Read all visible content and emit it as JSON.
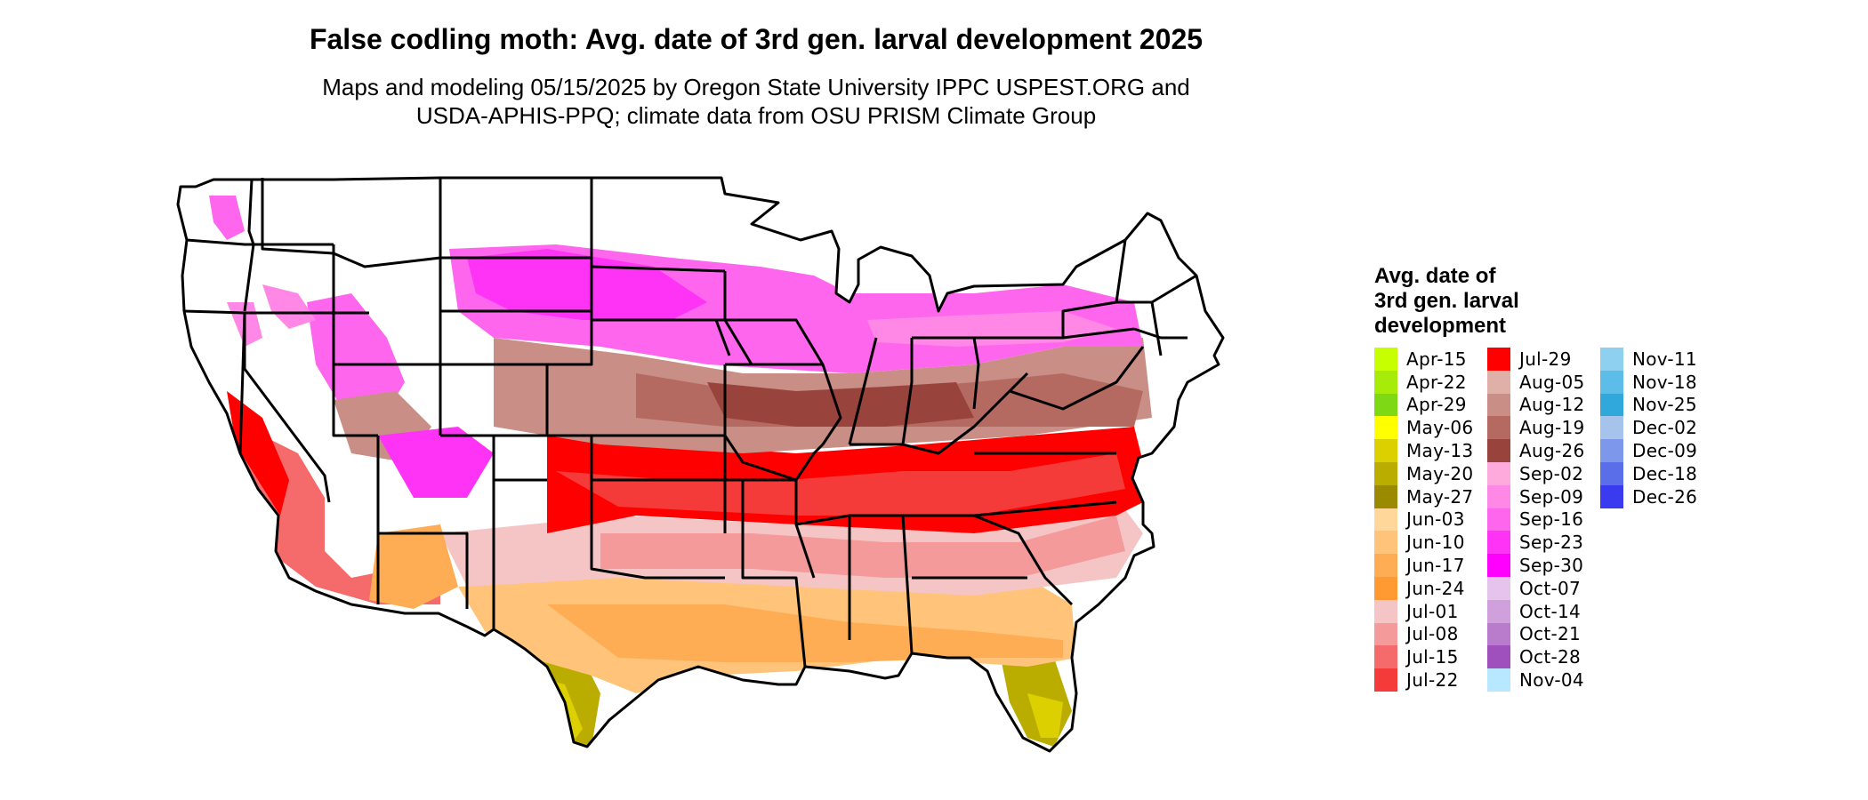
{
  "header": {
    "title": "False codling moth: Avg. date of 3rd gen. larval development 2025",
    "subtitle_line1": "Maps and modeling 05/15/2025 by Oregon State University IPPC USPEST.ORG and",
    "subtitle_line2": "USDA-APHIS-PPQ; climate data from OSU PRISM Climate Group"
  },
  "legend": {
    "title_line1": "Avg. date of",
    "title_line2": "3rd gen. larval",
    "title_line3": "development",
    "columns": [
      [
        {
          "label": "Apr-15",
          "color": "#C8FF00"
        },
        {
          "label": "Apr-22",
          "color": "#A6EB0A"
        },
        {
          "label": "Apr-29",
          "color": "#7FD814"
        },
        {
          "label": "May-06",
          "color": "#FFFF00"
        },
        {
          "label": "May-13",
          "color": "#DDD000"
        },
        {
          "label": "May-20",
          "color": "#BBAD00"
        },
        {
          "label": "May-27",
          "color": "#9A8A00"
        },
        {
          "label": "Jun-03",
          "color": "#FFD79A"
        },
        {
          "label": "Jun-10",
          "color": "#FFC47A"
        },
        {
          "label": "Jun-17",
          "color": "#FFAD55"
        },
        {
          "label": "Jun-24",
          "color": "#FF9A33"
        },
        {
          "label": "Jul-01",
          "color": "#F5C5C5"
        },
        {
          "label": "Jul-08",
          "color": "#F59A9A"
        },
        {
          "label": "Jul-15",
          "color": "#F56A6A"
        },
        {
          "label": "Jul-22",
          "color": "#F53A3A"
        }
      ],
      [
        {
          "label": "Jul-29",
          "color": "#FF0000"
        },
        {
          "label": "Aug-05",
          "color": "#DEB0A8"
        },
        {
          "label": "Aug-12",
          "color": "#C98E85"
        },
        {
          "label": "Aug-19",
          "color": "#B46A60"
        },
        {
          "label": "Aug-26",
          "color": "#98443C"
        },
        {
          "label": "Sep-02",
          "color": "#FFAADD"
        },
        {
          "label": "Sep-09",
          "color": "#FF88E6"
        },
        {
          "label": "Sep-16",
          "color": "#FF66EE"
        },
        {
          "label": "Sep-23",
          "color": "#FF33F5"
        },
        {
          "label": "Sep-30",
          "color": "#FF00FF"
        },
        {
          "label": "Oct-07",
          "color": "#E6C3EC"
        },
        {
          "label": "Oct-14",
          "color": "#D0A0DC"
        },
        {
          "label": "Oct-21",
          "color": "#B97CCC"
        },
        {
          "label": "Oct-28",
          "color": "#A050BC"
        },
        {
          "label": "Nov-04",
          "color": "#B8E8FF"
        }
      ],
      [
        {
          "label": "Nov-11",
          "color": "#8ED0F0"
        },
        {
          "label": "Nov-18",
          "color": "#5BBDE8"
        },
        {
          "label": "Nov-25",
          "color": "#30A8DC"
        },
        {
          "label": "Dec-02",
          "color": "#A6C3EC"
        },
        {
          "label": "Dec-09",
          "color": "#7D98EA"
        },
        {
          "label": "Dec-18",
          "color": "#5A6EEA"
        },
        {
          "label": "Dec-26",
          "color": "#3A3AF0"
        }
      ]
    ]
  }
}
